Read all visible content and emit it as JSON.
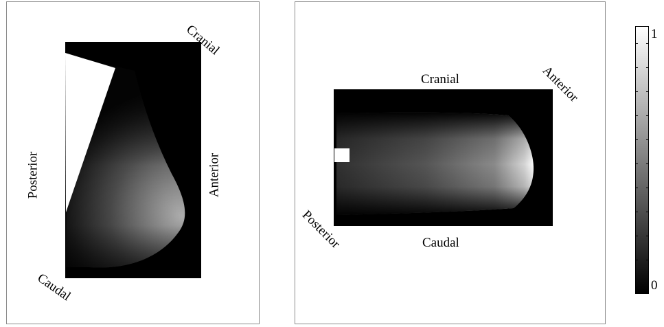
{
  "left_panel": {
    "labels": {
      "cranial": "Cranial",
      "caudal": "Caudal",
      "posterior": "Posterior",
      "anterior": "Anterior"
    }
  },
  "right_panel": {
    "labels": {
      "cranial": "Cranial",
      "caudal": "Caudal",
      "posterior": "Posterior",
      "anterior": "Anterior"
    }
  },
  "colorbar": {
    "max_label": "1",
    "min_label": "0",
    "colors": [
      "#000000",
      "#ffffff"
    ]
  }
}
